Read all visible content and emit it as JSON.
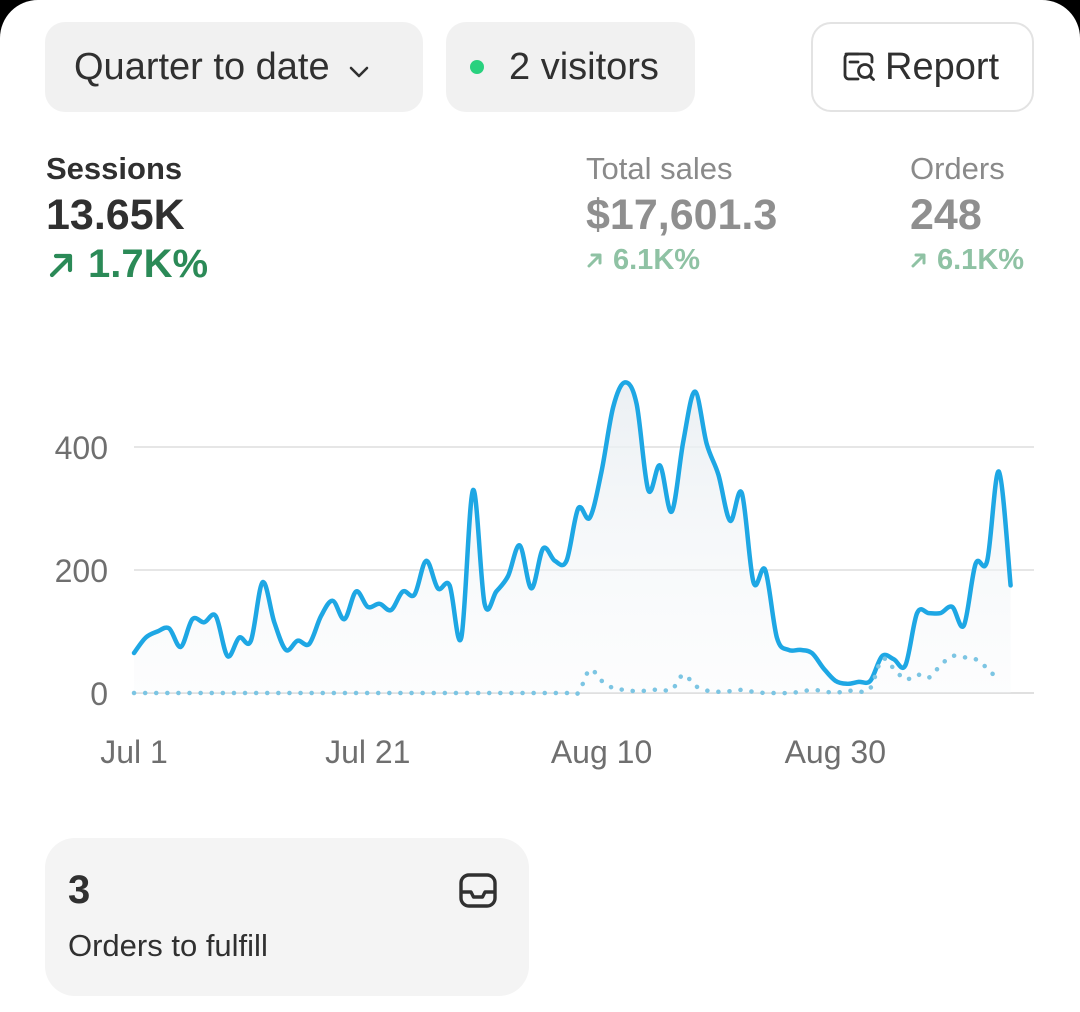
{
  "toolbar": {
    "period_label": "Quarter to date",
    "visitors_label": "2 visitors",
    "report_label": "Report",
    "live_dot_color": "#29d17e"
  },
  "metrics": {
    "sessions": {
      "label": "Sessions",
      "value": "13.65K",
      "delta": "1.7K%"
    },
    "total_sales": {
      "label": "Total sales",
      "value": "$17,601.3",
      "delta": "6.1K%"
    },
    "orders": {
      "label": "Orders",
      "value": "248",
      "delta": "6.1K%"
    }
  },
  "chart_data": {
    "type": "line",
    "x_tick_labels": [
      "Jul 1",
      "Jul 21",
      "Aug 10",
      "Aug 30"
    ],
    "y_tick_labels": [
      "0",
      "200",
      "400"
    ],
    "ylim": [
      0,
      520
    ],
    "x_range_days": [
      0,
      77
    ],
    "series": [
      {
        "role": "current",
        "style": "solid",
        "color": "#1ea7e4",
        "values": [
          65,
          90,
          100,
          105,
          75,
          120,
          115,
          125,
          60,
          90,
          85,
          180,
          115,
          70,
          85,
          80,
          125,
          150,
          120,
          165,
          140,
          145,
          135,
          165,
          160,
          215,
          170,
          175,
          90,
          330,
          145,
          165,
          190,
          240,
          170,
          235,
          215,
          215,
          300,
          285,
          360,
          465,
          505,
          470,
          330,
          370,
          295,
          410,
          490,
          405,
          355,
          280,
          325,
          180,
          200,
          90,
          70,
          70,
          65,
          40,
          20,
          15,
          18,
          20,
          60,
          55,
          45,
          130,
          130,
          130,
          140,
          110,
          210,
          215,
          360,
          175
        ]
      },
      {
        "role": "comparison",
        "style": "dotted",
        "color": "#7cc5e3",
        "values": [
          0,
          0,
          0,
          0,
          0,
          0,
          0,
          0,
          0,
          0,
          0,
          0,
          0,
          0,
          0,
          0,
          0,
          0,
          0,
          0,
          0,
          0,
          0,
          0,
          0,
          0,
          0,
          0,
          0,
          0,
          0,
          0,
          0,
          0,
          0,
          0,
          0,
          0,
          0,
          38,
          20,
          8,
          5,
          3,
          4,
          6,
          5,
          30,
          12,
          4,
          2,
          3,
          5,
          2,
          0,
          0,
          0,
          2,
          5,
          3,
          0,
          4,
          2,
          8,
          55,
          40,
          22,
          30,
          25,
          45,
          60,
          58,
          55,
          40,
          20
        ]
      }
    ],
    "grid": true,
    "legend": "none"
  },
  "fulfill_card": {
    "count": "3",
    "label": "Orders to fulfill"
  }
}
